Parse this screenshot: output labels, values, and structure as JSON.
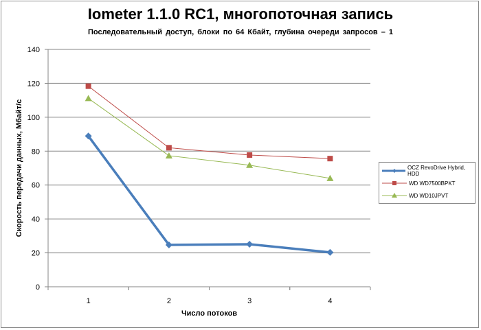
{
  "chart_data": {
    "type": "line",
    "title": "Iometer 1.1.0 RC1, многопоточная запись",
    "subtitle": "Последовательный  доступ, блоки  по 64 Кбайт,  глубина очереди запросов  – 1",
    "xlabel": "Число  потоков",
    "ylabel": "Скорость  передачи данных, Мбайт/с",
    "categories": [
      "1",
      "2",
      "3",
      "4"
    ],
    "ylim": [
      0,
      140
    ],
    "yticks": [
      "0",
      "20",
      "40",
      "60",
      "80",
      "100",
      "120",
      "140"
    ],
    "grid": true,
    "legend_position": "right",
    "series": [
      {
        "name": "OCZ RevoDrive Hybrid, HDD",
        "values": [
          88.9,
          24.7,
          25.1,
          20.3
        ],
        "color": "#4a7ebb",
        "marker": "diamond"
      },
      {
        "name": "WD WD7500BPKT",
        "values": [
          118.3,
          82.0,
          77.7,
          75.6
        ],
        "color": "#be4b48",
        "marker": "square"
      },
      {
        "name": "WD WD10JPVT",
        "values": [
          111.1,
          77.3,
          71.7,
          64.0
        ],
        "color": "#98b954",
        "marker": "triangle"
      }
    ]
  }
}
